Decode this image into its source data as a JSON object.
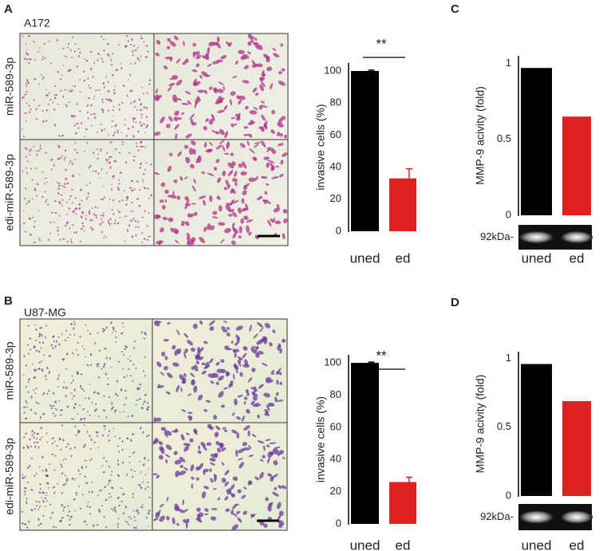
{
  "panels": [
    {
      "letter": "A",
      "cell_line": "A172",
      "rows": [
        "miR-589-3p",
        "edi-miR-589-3p"
      ]
    },
    {
      "letter": "B",
      "cell_line": "U87-MG",
      "rows": [
        "miR-589-3p",
        "edi-miR-589-3p"
      ]
    },
    {
      "letter": "C"
    },
    {
      "letter": "D"
    }
  ],
  "chart_data": [
    {
      "type": "bar",
      "ylabel": "invasive cells (%)",
      "categories": [
        "uned",
        "ed"
      ],
      "values": [
        100,
        33
      ],
      "errors": [
        0.5,
        6
      ],
      "colors": [
        "#000000",
        "#e02020"
      ],
      "ylim": [
        0,
        105
      ],
      "yticks": [
        0,
        20,
        40,
        60,
        80,
        100
      ],
      "annotation": "**"
    },
    {
      "type": "bar",
      "ylabel": "invasive cells (%)",
      "categories": [
        "uned",
        "ed"
      ],
      "values": [
        100,
        26
      ],
      "errors": [
        0.5,
        3
      ],
      "colors": [
        "#000000",
        "#e02020"
      ],
      "ylim": [
        0,
        105
      ],
      "yticks": [
        0,
        20,
        40,
        60,
        80,
        100
      ],
      "annotation": "**"
    },
    {
      "type": "bar",
      "ylabel": "MMP-9 acivity (fold)",
      "categories": [
        "uned",
        "ed"
      ],
      "values": [
        0.97,
        0.65
      ],
      "colors": [
        "#000000",
        "#e02020"
      ],
      "ylim": [
        0,
        1.05
      ],
      "yticks": [
        0,
        0.5,
        1
      ],
      "band_label": "92kDa-"
    },
    {
      "type": "bar",
      "ylabel": "MMP-9 acivity (fold)",
      "categories": [
        "uned",
        "ed"
      ],
      "values": [
        0.96,
        0.69
      ],
      "colors": [
        "#000000",
        "#e02020"
      ],
      "ylim": [
        0,
        1.05
      ],
      "yticks": [
        0,
        0.5,
        1
      ],
      "band_label": "92kDa-"
    }
  ]
}
